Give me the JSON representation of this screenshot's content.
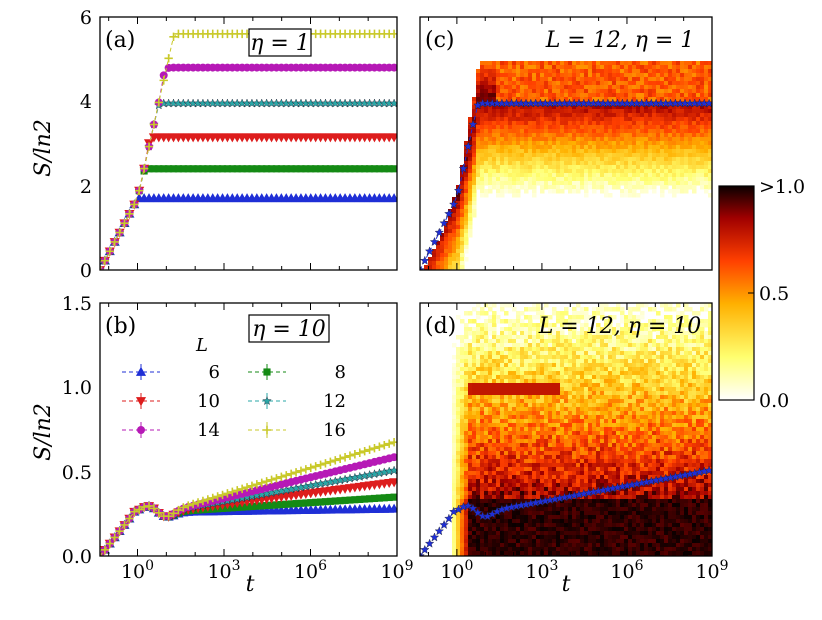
{
  "chart_data": [
    {
      "panel": "a",
      "type": "line",
      "title": "η = 1",
      "xscale": "log",
      "xlabel": "",
      "ylabel": "S/ln2",
      "xlim": [
        0.05,
        1000000000
      ],
      "ylim": [
        0,
        6
      ],
      "yticks": [
        "0",
        "2",
        "4",
        "6"
      ],
      "series": [
        {
          "name": "6",
          "color": "#1f2fd6",
          "marker": "triangle-up",
          "saturation": 1.7
        },
        {
          "name": "8",
          "color": "#148a14",
          "marker": "square",
          "saturation": 2.4
        },
        {
          "name": "10",
          "color": "#dd1d1d",
          "marker": "triangle-down",
          "saturation": 3.15
        },
        {
          "name": "12",
          "color": "#2aa7a7",
          "marker": "star",
          "saturation": 3.95
        },
        {
          "name": "14",
          "color": "#b619b6",
          "marker": "circle",
          "saturation": 4.8
        },
        {
          "name": "16",
          "color": "#c9c92a",
          "marker": "plus",
          "saturation": 5.6
        }
      ]
    },
    {
      "panel": "b",
      "type": "line",
      "title": "η = 10",
      "xscale": "log",
      "xlabel": "t",
      "ylabel": "S/ln2",
      "xlim": [
        0.05,
        1000000000
      ],
      "ylim": [
        0,
        1.5
      ],
      "xticks": [
        "10^0",
        "10^3",
        "10^6",
        "10^9"
      ],
      "yticks": [
        "0.0",
        "0.5",
        "1.0",
        "1.5"
      ],
      "legend_title": "L",
      "series": [
        {
          "name": "6",
          "color": "#1f2fd6",
          "marker": "triangle-up",
          "final": 0.29
        },
        {
          "name": "8",
          "color": "#148a14",
          "marker": "square",
          "final": 0.36
        },
        {
          "name": "10",
          "color": "#dd1d1d",
          "marker": "triangle-down",
          "final": 0.45
        },
        {
          "name": "12",
          "color": "#2aa7a7",
          "marker": "star",
          "final": 0.52
        },
        {
          "name": "14",
          "color": "#b619b6",
          "marker": "circle",
          "final": 0.6
        },
        {
          "name": "16",
          "color": "#c9c92a",
          "marker": "plus",
          "final": 0.69
        }
      ]
    },
    {
      "panel": "c",
      "type": "heatmap",
      "title": "L = 12, η = 1",
      "xscale": "log",
      "xlim": [
        0.05,
        1000000000
      ],
      "ylim": [
        0,
        6
      ],
      "overlay_series": {
        "name": "12",
        "color": "#1f2fd6",
        "marker": "star",
        "saturation": 3.95
      }
    },
    {
      "panel": "d",
      "type": "heatmap",
      "title": "L = 12, η = 10",
      "xscale": "log",
      "xlabel": "t",
      "xlim": [
        0.05,
        1000000000
      ],
      "ylim": [
        0,
        1.5
      ],
      "xticks": [
        "10^0",
        "10^3",
        "10^6",
        "10^9"
      ],
      "overlay_series": {
        "name": "12",
        "color": "#1f2fd6",
        "marker": "star",
        "final": 0.52
      }
    },
    {
      "type": "colorbar",
      "ticks": [
        "0.0",
        "0.5",
        ">1.0"
      ],
      "range": [
        0,
        1
      ],
      "colormap": "hot_r"
    }
  ],
  "labels": {
    "panel_a": "(a)",
    "panel_b": "(b)",
    "panel_c": "(c)",
    "panel_d": "(d)",
    "ylabel_top": "S/ln2",
    "ylabel_bottom": "S/ln2",
    "xlabel_left": "t",
    "xlabel_right": "t",
    "legend_title": "L"
  }
}
